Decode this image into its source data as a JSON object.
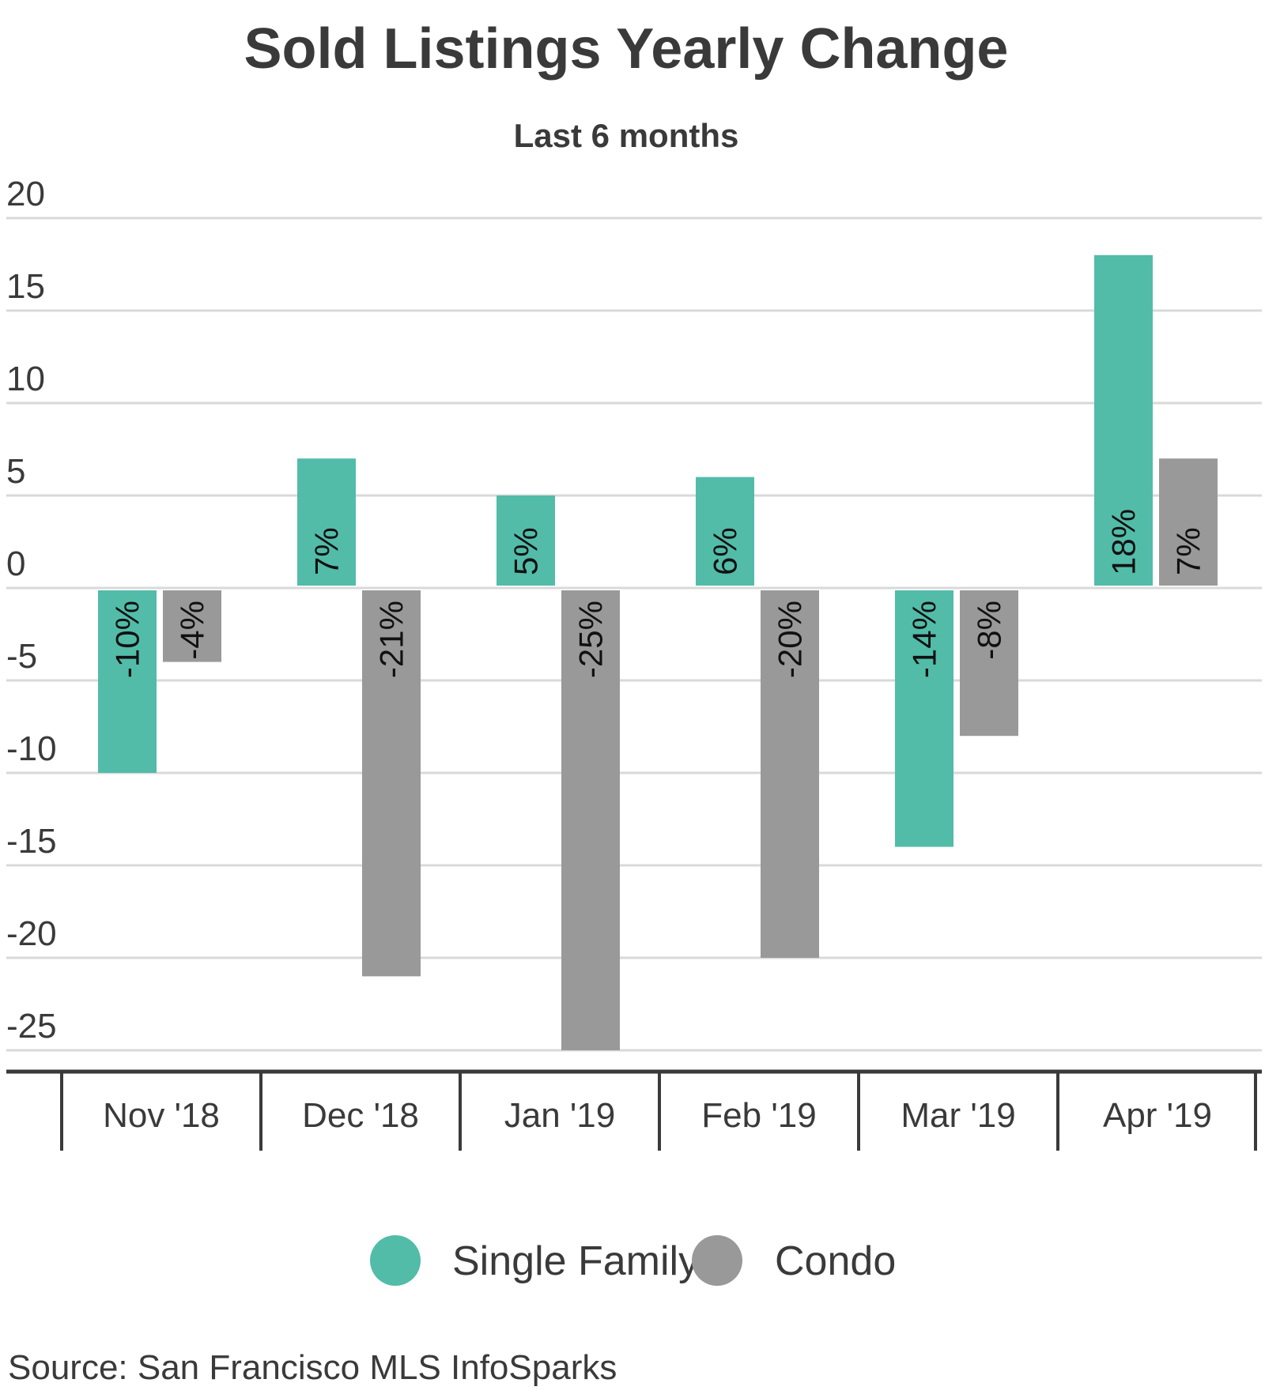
{
  "chart_data": {
    "type": "bar",
    "title": "Sold Listings Yearly Change",
    "subtitle": "Last 6 months",
    "categories": [
      "Nov '18",
      "Dec '18",
      "Jan '19",
      "Feb '19",
      "Mar '19",
      "Apr '19"
    ],
    "series": [
      {
        "name": "Single Family",
        "color": "#52bca9",
        "values": [
          -10,
          7,
          5,
          6,
          -14,
          18
        ],
        "labels": [
          "-10%",
          "7%",
          "5%",
          "6%",
          "-14%",
          "18%"
        ]
      },
      {
        "name": "Condo",
        "color": "#999999",
        "values": [
          -4,
          -21,
          -25,
          -20,
          -8,
          7
        ],
        "labels": [
          "-4%",
          "-21%",
          "-25%",
          "-20%",
          "-8%",
          "7%"
        ]
      }
    ],
    "yticks": [
      "20",
      "15",
      "10",
      "5",
      "0",
      "-5",
      "-10",
      "-15",
      "-20",
      "-25"
    ],
    "ylim": [
      -25,
      20
    ],
    "grid": true,
    "legend_position": "bottom",
    "source": "Source:  San Francisco MLS InfoSparks"
  }
}
